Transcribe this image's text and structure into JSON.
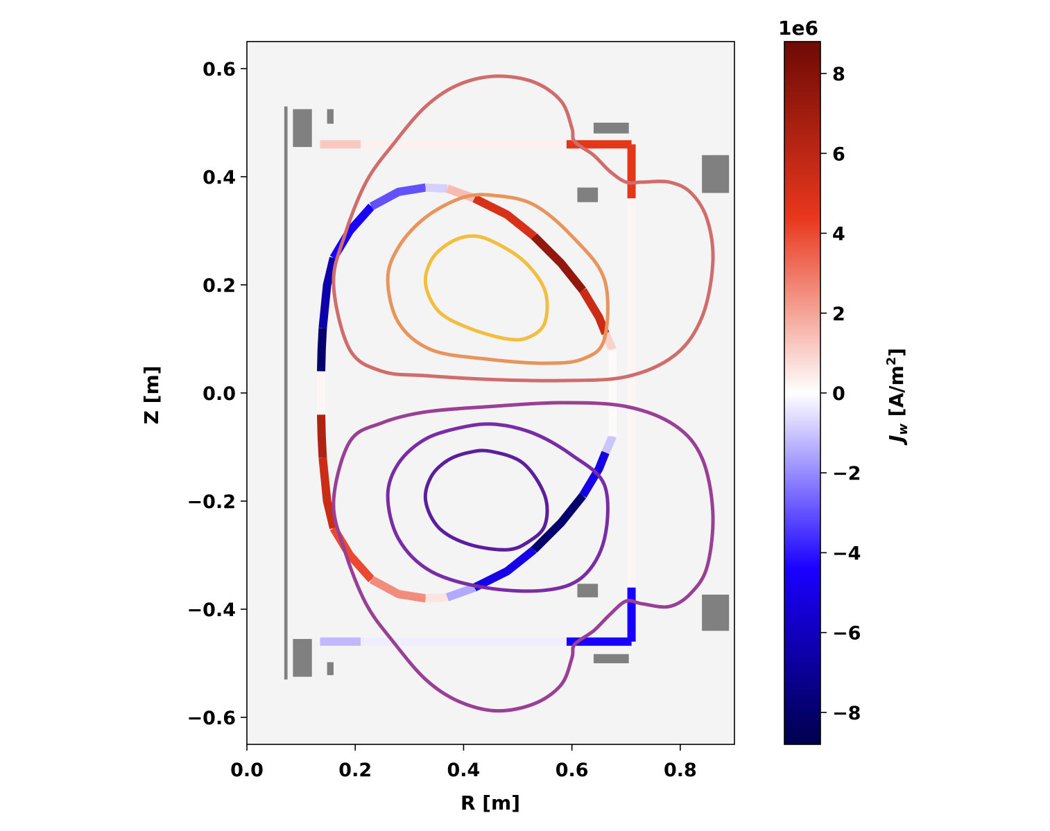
{
  "chart_data": {
    "type": "line",
    "xlabel": "R [m]",
    "ylabel": "Z [m]",
    "xlim": [
      0.0,
      0.9
    ],
    "ylim": [
      -0.65,
      0.65
    ],
    "x_ticks": [
      0.0,
      0.2,
      0.4,
      0.6,
      0.8
    ],
    "x_tick_labels": [
      "0.0",
      "0.2",
      "0.4",
      "0.6",
      "0.8"
    ],
    "y_ticks": [
      0.6,
      0.4,
      0.2,
      0.0,
      -0.2,
      -0.4,
      -0.6
    ],
    "y_tick_labels": [
      "0.6",
      "0.4",
      "0.2",
      "0.0",
      "−0.2",
      "−0.4",
      "−0.6"
    ],
    "grid": false,
    "background_color": "#f4f4f4",
    "colorbar": {
      "label": "J_w [A/m^2]",
      "label_parts": {
        "main": "J",
        "sub": "w",
        "rest": " [A/m",
        "sup": "2",
        "end": "]"
      },
      "exponent_label": "1e6",
      "range": [
        -8.8,
        8.8
      ],
      "ticks": [
        8,
        6,
        4,
        2,
        0,
        -2,
        -4,
        -6,
        -8
      ],
      "tick_labels": [
        "8",
        "6",
        "4",
        "2",
        "0",
        "−2",
        "−4",
        "−6",
        "−8"
      ],
      "colormap": [
        "#00004c",
        "#1a00ff",
        "#ffffff",
        "#e8371c",
        "#6e0a05"
      ]
    },
    "flux_contours": [
      {
        "color": "#f2be3f",
        "points": [
          [
            0.33,
            0.2
          ],
          [
            0.34,
            0.245
          ],
          [
            0.37,
            0.275
          ],
          [
            0.41,
            0.29
          ],
          [
            0.45,
            0.282
          ],
          [
            0.51,
            0.245
          ],
          [
            0.55,
            0.19
          ],
          [
            0.55,
            0.13
          ],
          [
            0.52,
            0.103
          ],
          [
            0.48,
            0.1
          ],
          [
            0.41,
            0.12
          ],
          [
            0.355,
            0.15
          ]
        ]
      },
      {
        "color": "#e8945c",
        "points": [
          [
            0.26,
            0.21
          ],
          [
            0.28,
            0.27
          ],
          [
            0.33,
            0.325
          ],
          [
            0.4,
            0.362
          ],
          [
            0.46,
            0.365
          ],
          [
            0.53,
            0.348
          ],
          [
            0.6,
            0.29
          ],
          [
            0.66,
            0.21
          ],
          [
            0.66,
            0.1
          ],
          [
            0.62,
            0.063
          ],
          [
            0.55,
            0.055
          ],
          [
            0.44,
            0.063
          ],
          [
            0.34,
            0.08
          ],
          [
            0.28,
            0.13
          ]
        ]
      },
      {
        "color": "#d06c6c",
        "points": [
          [
            0.16,
            0.2
          ],
          [
            0.18,
            0.29
          ],
          [
            0.22,
            0.39
          ],
          [
            0.27,
            0.46
          ],
          [
            0.33,
            0.53
          ],
          [
            0.39,
            0.57
          ],
          [
            0.46,
            0.586
          ],
          [
            0.53,
            0.575
          ],
          [
            0.58,
            0.54
          ],
          [
            0.6,
            0.49
          ],
          [
            0.605,
            0.465
          ],
          [
            0.64,
            0.44
          ],
          [
            0.67,
            0.41
          ],
          [
            0.7,
            0.39
          ],
          [
            0.73,
            0.39
          ],
          [
            0.78,
            0.39
          ],
          [
            0.82,
            0.37
          ],
          [
            0.85,
            0.32
          ],
          [
            0.86,
            0.24
          ],
          [
            0.84,
            0.14
          ],
          [
            0.79,
            0.07
          ],
          [
            0.7,
            0.03
          ],
          [
            0.58,
            0.023
          ],
          [
            0.45,
            0.025
          ],
          [
            0.33,
            0.032
          ],
          [
            0.25,
            0.04
          ],
          [
            0.19,
            0.08
          ]
        ]
      },
      {
        "color": "#5a1e9e",
        "points": [
          [
            0.33,
            -0.2
          ],
          [
            0.34,
            -0.155
          ],
          [
            0.37,
            -0.125
          ],
          [
            0.41,
            -0.11
          ],
          [
            0.45,
            -0.108
          ],
          [
            0.51,
            -0.13
          ],
          [
            0.55,
            -0.19
          ],
          [
            0.55,
            -0.245
          ],
          [
            0.52,
            -0.275
          ],
          [
            0.48,
            -0.29
          ],
          [
            0.41,
            -0.28
          ],
          [
            0.355,
            -0.25
          ]
        ]
      },
      {
        "color": "#7a2ca6",
        "points": [
          [
            0.26,
            -0.19
          ],
          [
            0.28,
            -0.13
          ],
          [
            0.33,
            -0.085
          ],
          [
            0.4,
            -0.063
          ],
          [
            0.46,
            -0.058
          ],
          [
            0.53,
            -0.075
          ],
          [
            0.6,
            -0.115
          ],
          [
            0.66,
            -0.17
          ],
          [
            0.66,
            -0.27
          ],
          [
            0.62,
            -0.34
          ],
          [
            0.55,
            -0.365
          ],
          [
            0.44,
            -0.36
          ],
          [
            0.34,
            -0.33
          ],
          [
            0.28,
            -0.27
          ]
        ]
      },
      {
        "color": "#9a3f96",
        "points": [
          [
            0.16,
            -0.2
          ],
          [
            0.19,
            -0.09
          ],
          [
            0.25,
            -0.055
          ],
          [
            0.33,
            -0.035
          ],
          [
            0.45,
            -0.025
          ],
          [
            0.58,
            -0.018
          ],
          [
            0.7,
            -0.025
          ],
          [
            0.79,
            -0.06
          ],
          [
            0.84,
            -0.12
          ],
          [
            0.86,
            -0.22
          ],
          [
            0.85,
            -0.32
          ],
          [
            0.82,
            -0.37
          ],
          [
            0.78,
            -0.395
          ],
          [
            0.73,
            -0.39
          ],
          [
            0.7,
            -0.385
          ],
          [
            0.67,
            -0.41
          ],
          [
            0.64,
            -0.44
          ],
          [
            0.605,
            -0.465
          ],
          [
            0.6,
            -0.49
          ],
          [
            0.58,
            -0.54
          ],
          [
            0.53,
            -0.575
          ],
          [
            0.46,
            -0.588
          ],
          [
            0.39,
            -0.57
          ],
          [
            0.33,
            -0.53
          ],
          [
            0.27,
            -0.46
          ],
          [
            0.22,
            -0.39
          ],
          [
            0.18,
            -0.29
          ]
        ]
      }
    ],
    "wall_current_segments": [
      {
        "J": -8.0,
        "points": [
          [
            0.137,
            0.04
          ],
          [
            0.138,
            0.08
          ],
          [
            0.14,
            0.12
          ]
        ]
      },
      {
        "J": -6.5,
        "points": [
          [
            0.14,
            0.12
          ],
          [
            0.148,
            0.2
          ],
          [
            0.16,
            0.25
          ]
        ]
      },
      {
        "J": -4.5,
        "points": [
          [
            0.16,
            0.25
          ],
          [
            0.19,
            0.3
          ],
          [
            0.23,
            0.345
          ]
        ]
      },
      {
        "J": -3.0,
        "points": [
          [
            0.23,
            0.345
          ],
          [
            0.28,
            0.372
          ],
          [
            0.33,
            0.38
          ]
        ]
      },
      {
        "J": -0.8,
        "points": [
          [
            0.33,
            0.38
          ],
          [
            0.37,
            0.378
          ]
        ]
      },
      {
        "J": 1.5,
        "points": [
          [
            0.37,
            0.378
          ],
          [
            0.42,
            0.36
          ]
        ]
      },
      {
        "J": 5.0,
        "points": [
          [
            0.42,
            0.36
          ],
          [
            0.48,
            0.33
          ],
          [
            0.53,
            0.29
          ]
        ]
      },
      {
        "J": 7.5,
        "points": [
          [
            0.53,
            0.29
          ],
          [
            0.58,
            0.24
          ],
          [
            0.62,
            0.19
          ]
        ]
      },
      {
        "J": 5.5,
        "points": [
          [
            0.62,
            0.19
          ],
          [
            0.65,
            0.14
          ],
          [
            0.662,
            0.11
          ]
        ]
      },
      {
        "J": 1.0,
        "points": [
          [
            0.662,
            0.11
          ],
          [
            0.675,
            0.08
          ]
        ]
      },
      {
        "J": 6.5,
        "points": [
          [
            0.137,
            -0.04
          ],
          [
            0.138,
            -0.08
          ],
          [
            0.14,
            -0.12
          ]
        ]
      },
      {
        "J": 5.5,
        "points": [
          [
            0.14,
            -0.12
          ],
          [
            0.148,
            -0.2
          ],
          [
            0.16,
            -0.25
          ]
        ]
      },
      {
        "J": 4.0,
        "points": [
          [
            0.16,
            -0.25
          ],
          [
            0.19,
            -0.3
          ],
          [
            0.23,
            -0.345
          ]
        ]
      },
      {
        "J": 2.5,
        "points": [
          [
            0.23,
            -0.345
          ],
          [
            0.28,
            -0.372
          ],
          [
            0.33,
            -0.38
          ]
        ]
      },
      {
        "J": 0.6,
        "points": [
          [
            0.33,
            -0.38
          ],
          [
            0.37,
            -0.378
          ]
        ]
      },
      {
        "J": -1.5,
        "points": [
          [
            0.37,
            -0.378
          ],
          [
            0.42,
            -0.36
          ]
        ]
      },
      {
        "J": -5.0,
        "points": [
          [
            0.42,
            -0.36
          ],
          [
            0.48,
            -0.33
          ],
          [
            0.53,
            -0.29
          ]
        ]
      },
      {
        "J": -8.0,
        "points": [
          [
            0.53,
            -0.29
          ],
          [
            0.58,
            -0.24
          ],
          [
            0.62,
            -0.19
          ]
        ]
      },
      {
        "J": -5.0,
        "points": [
          [
            0.62,
            -0.19
          ],
          [
            0.65,
            -0.14
          ],
          [
            0.662,
            -0.11
          ]
        ]
      },
      {
        "J": -1.0,
        "points": [
          [
            0.662,
            -0.11
          ],
          [
            0.675,
            -0.08
          ]
        ]
      },
      {
        "J": 0.2,
        "points": [
          [
            0.137,
            -0.04
          ],
          [
            0.137,
            0.04
          ]
        ]
      },
      {
        "J": 0.1,
        "points": [
          [
            0.675,
            0.08
          ],
          [
            0.675,
            -0.08
          ]
        ]
      },
      {
        "J": 1.2,
        "points": [
          [
            0.135,
            0.46
          ],
          [
            0.21,
            0.46
          ]
        ]
      },
      {
        "J": 0.3,
        "points": [
          [
            0.21,
            0.46
          ],
          [
            0.59,
            0.46
          ]
        ]
      },
      {
        "J": 4.5,
        "points": [
          [
            0.59,
            0.46
          ],
          [
            0.71,
            0.46
          ]
        ]
      },
      {
        "J": 4.5,
        "points": [
          [
            0.71,
            0.46
          ],
          [
            0.71,
            0.36
          ]
        ]
      },
      {
        "J": 0.2,
        "points": [
          [
            0.71,
            0.36
          ],
          [
            0.71,
            -0.36
          ]
        ]
      },
      {
        "J": -4.5,
        "points": [
          [
            0.71,
            -0.36
          ],
          [
            0.71,
            -0.46
          ]
        ]
      },
      {
        "J": -4.5,
        "points": [
          [
            0.71,
            -0.46
          ],
          [
            0.59,
            -0.46
          ]
        ]
      },
      {
        "J": -0.3,
        "points": [
          [
            0.59,
            -0.46
          ],
          [
            0.21,
            -0.46
          ]
        ]
      },
      {
        "J": -1.2,
        "points": [
          [
            0.21,
            -0.46
          ],
          [
            0.135,
            -0.46
          ]
        ]
      }
    ],
    "structures": [
      {
        "color": "#808080",
        "rect": [
          0.069,
          0.075,
          -0.53,
          0.53
        ]
      },
      {
        "color": "#808080",
        "rect": [
          0.085,
          0.12,
          0.455,
          0.525
        ]
      },
      {
        "color": "#808080",
        "rect": [
          0.148,
          0.16,
          0.498,
          0.525
        ]
      },
      {
        "color": "#808080",
        "rect": [
          0.085,
          0.12,
          -0.525,
          -0.455
        ]
      },
      {
        "color": "#808080",
        "rect": [
          0.148,
          0.16,
          -0.522,
          -0.498
        ]
      },
      {
        "color": "#808080",
        "rect": [
          0.64,
          0.705,
          0.48,
          0.5
        ]
      },
      {
        "color": "#808080",
        "rect": [
          0.61,
          0.648,
          0.353,
          0.38
        ]
      },
      {
        "color": "#808080",
        "rect": [
          0.84,
          0.89,
          0.37,
          0.44
        ]
      },
      {
        "color": "#808080",
        "rect": [
          0.61,
          0.648,
          -0.378,
          -0.353
        ]
      },
      {
        "color": "#808080",
        "rect": [
          0.64,
          0.705,
          -0.5,
          -0.483
        ]
      },
      {
        "color": "#808080",
        "rect": [
          0.84,
          0.89,
          -0.44,
          -0.373
        ]
      }
    ]
  }
}
